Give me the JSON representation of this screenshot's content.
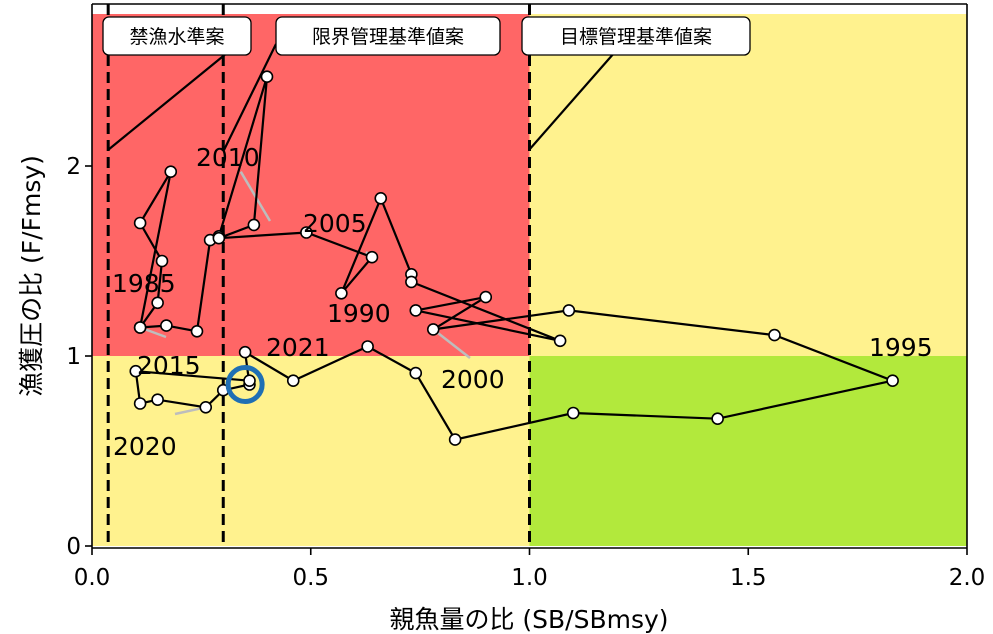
{
  "chart_data": {
    "type": "scatter",
    "xlabel": "親魚量の比 (SB/SBmsy)",
    "ylabel": "漁獲圧の比 (F/Fmsy)",
    "xlim": [
      0,
      2.0
    ],
    "ylim": [
      0,
      2.8
    ],
    "x_ticks": [
      "0.0",
      "0.5",
      "1.0",
      "1.5",
      "2.0"
    ],
    "y_ticks": [
      "0",
      "1",
      "2"
    ],
    "grid": false,
    "zones": [
      {
        "name": "red",
        "color": "#ff6666",
        "x": [
          0,
          1.0
        ],
        "y": [
          1.0,
          2.8
        ]
      },
      {
        "name": "yellow-right",
        "color": "#fff28e",
        "x": [
          1.0,
          2.0
        ],
        "y": [
          1.0,
          2.8
        ]
      },
      {
        "name": "yellow-left",
        "color": "#fff28e",
        "x": [
          0,
          1.0
        ],
        "y": [
          0,
          1.0
        ]
      },
      {
        "name": "green",
        "color": "#b2e93c",
        "x": [
          1.0,
          2.0
        ],
        "y": [
          0,
          1.0
        ]
      }
    ],
    "reference_lines": [
      {
        "label": "禁漁水準案",
        "x": 0.037
      },
      {
        "label": "限界管理基準値案",
        "x": 0.3
      },
      {
        "label": "目標管理基準値案",
        "x": 1.0
      }
    ],
    "series": [
      {
        "x": [
          0.11,
          0.18,
          0.11,
          0.16,
          0.15,
          0.11,
          0.17,
          0.24,
          0.27,
          0.29,
          0.4,
          0.37,
          0.29,
          0.49,
          0.64,
          0.57,
          0.66,
          0.73,
          0.73,
          1.07,
          0.74,
          0.9,
          0.78,
          1.09,
          1.56,
          1.83,
          1.43,
          1.1,
          0.83,
          0.74,
          0.63,
          0.46,
          0.35,
          0.36,
          0.3,
          0.26,
          0.15,
          0.11,
          0.1,
          0.36
        ],
        "y": [
          1.15,
          1.97,
          1.7,
          1.5,
          1.28,
          1.15,
          1.16,
          1.13,
          1.61,
          1.63,
          2.47,
          1.69,
          1.62,
          1.65,
          1.52,
          1.33,
          1.83,
          1.43,
          1.39,
          1.08,
          1.24,
          1.31,
          1.14,
          1.24,
          1.11,
          0.87,
          0.67,
          0.7,
          0.56,
          0.91,
          1.05,
          0.87,
          1.02,
          0.85,
          0.82,
          0.73,
          0.77,
          0.75,
          0.92,
          0.87
        ]
      }
    ],
    "annotations": [
      {
        "text": "1985",
        "x": 0.11,
        "y": 1.15
      },
      {
        "text": "1990",
        "x": 0.7,
        "y": 1.24
      },
      {
        "text": "1995",
        "x": 1.83,
        "y": 0.87
      },
      {
        "text": "2000",
        "x": 0.78,
        "y": 1.14
      },
      {
        "text": "2005",
        "x": 0.64,
        "y": 1.52
      },
      {
        "text": "2010",
        "x": 0.34,
        "y": 1.97
      },
      {
        "text": "2015",
        "x": 0.11,
        "y": 1.15
      },
      {
        "text": "2020",
        "x": 0.26,
        "y": 0.73
      },
      {
        "text": "2021",
        "x": 0.36,
        "y": 0.87
      }
    ],
    "current_point": {
      "x": 0.35,
      "y": 0.85,
      "color": "#1f6fb4"
    }
  }
}
